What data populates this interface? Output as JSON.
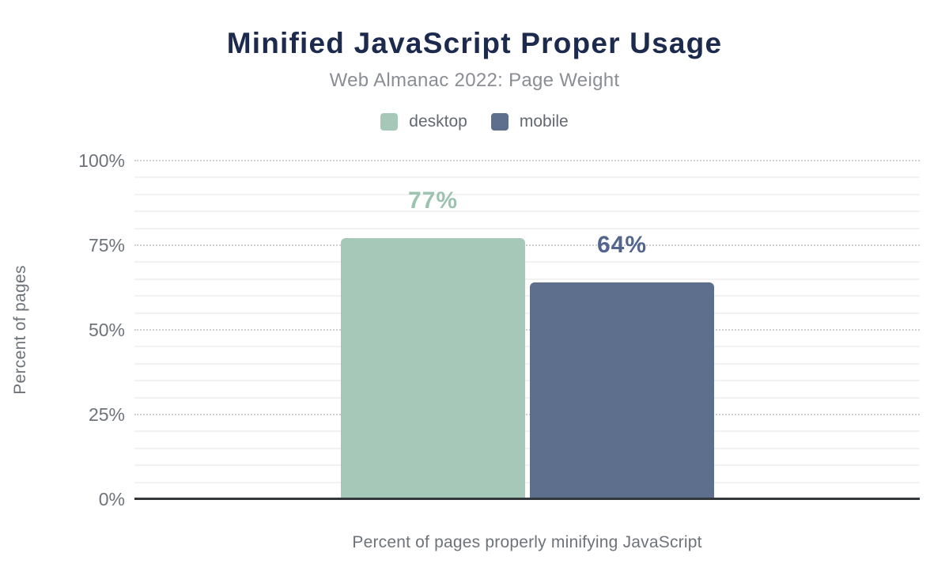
{
  "chart": {
    "title": "Minified JavaScript Proper Usage",
    "subtitle": "Web Almanac 2022: Page Weight",
    "ylabel": "Percent of pages",
    "xlabel": "Percent of pages properly minifying JavaScript"
  },
  "chart_data": {
    "type": "bar",
    "title": "Minified JavaScript Proper Usage",
    "subtitle": "Web Almanac 2022: Page Weight",
    "categories": [
      "Percent of pages properly minifying JavaScript"
    ],
    "series": [
      {
        "name": "desktop",
        "values": [
          77
        ],
        "data_label": "77%",
        "color": "#a5c8b8",
        "label_color": "#9cc3b0"
      },
      {
        "name": "mobile",
        "values": [
          64
        ],
        "data_label": "64%",
        "color": "#5d6f8c",
        "label_color": "#53658c"
      }
    ],
    "xlabel": "Percent of pages properly minifying JavaScript",
    "ylabel": "Percent of pages",
    "ylim": [
      0,
      100
    ],
    "yticks": [
      {
        "value": 0,
        "label": "0%"
      },
      {
        "value": 25,
        "label": "25%"
      },
      {
        "value": 50,
        "label": "50%"
      },
      {
        "value": 75,
        "label": "75%"
      },
      {
        "value": 100,
        "label": "100%"
      }
    ],
    "minor_grid_step": 5,
    "grid": true,
    "legend_position": "top"
  },
  "colors": {
    "title": "#1c2a4d",
    "subtitle": "#8a8e94",
    "tick_text": "#6e737a",
    "legend_text": "#636871",
    "axis_line": "#33373c",
    "major_grid": "#cfcfcf",
    "minor_grid": "#f2f2f3",
    "background": "#ffffff"
  }
}
